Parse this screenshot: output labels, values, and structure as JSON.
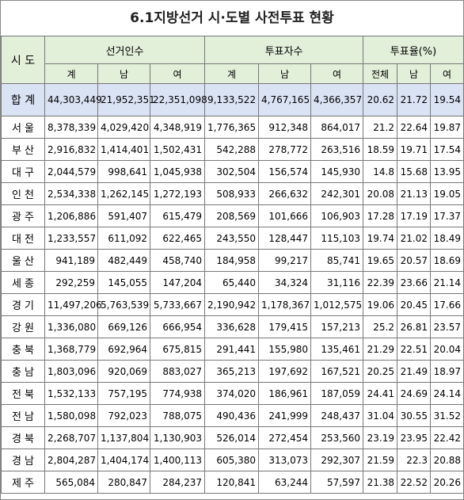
{
  "title": "6.1지방선거 시·도별 사전투표 현황",
  "header": {
    "region": "시 도",
    "groups": [
      "선거인수",
      "투표자수",
      "투표율(%)"
    ],
    "subheaders": [
      "계",
      "남",
      "여",
      "계",
      "남",
      "여",
      "전체",
      "남",
      "여"
    ]
  },
  "total": [
    "합 계",
    "44,303,449",
    "21,952,351",
    "22,351,098",
    "9,133,522",
    "4,767,165",
    "4,366,357",
    "20.62",
    "21.72",
    "19.54"
  ],
  "rows": [
    [
      "서 울",
      "8,378,339",
      "4,029,420",
      "4,348,919",
      "1,776,365",
      "912,348",
      "864,017",
      "21.2",
      "22.64",
      "19.87"
    ],
    [
      "부 산",
      "2,916,832",
      "1,414,401",
      "1,502,431",
      "542,288",
      "278,772",
      "263,516",
      "18.59",
      "19.71",
      "17.54"
    ],
    [
      "대 구",
      "2,044,579",
      "998,641",
      "1,045,938",
      "302,504",
      "156,574",
      "145,930",
      "14.8",
      "15.68",
      "13.95"
    ],
    [
      "인 천",
      "2,534,338",
      "1,262,145",
      "1,272,193",
      "508,933",
      "266,632",
      "242,301",
      "20.08",
      "21.13",
      "19.05"
    ],
    [
      "광 주",
      "1,206,886",
      "591,407",
      "615,479",
      "208,569",
      "101,666",
      "106,903",
      "17.28",
      "17.19",
      "17.37"
    ],
    [
      "대 전",
      "1,233,557",
      "611,092",
      "622,465",
      "243,550",
      "128,447",
      "115,103",
      "19.74",
      "21.02",
      "18.49"
    ],
    [
      "울 산",
      "941,189",
      "482,449",
      "458,740",
      "184,958",
      "99,217",
      "85,741",
      "19.65",
      "20.57",
      "18.69"
    ],
    [
      "세 종",
      "292,259",
      "145,055",
      "147,204",
      "65,440",
      "34,324",
      "31,116",
      "22.39",
      "23.66",
      "21.14"
    ],
    [
      "경 기",
      "11,497,206",
      "5,763,539",
      "5,733,667",
      "2,190,942",
      "1,178,367",
      "1,012,575",
      "19.06",
      "20.45",
      "17.66"
    ],
    [
      "강 원",
      "1,336,080",
      "669,126",
      "666,954",
      "336,628",
      "179,415",
      "157,213",
      "25.2",
      "26.81",
      "23.57"
    ],
    [
      "충 북",
      "1,368,779",
      "692,964",
      "675,815",
      "291,441",
      "155,980",
      "135,461",
      "21.29",
      "22.51",
      "20.04"
    ],
    [
      "충 남",
      "1,803,096",
      "920,069",
      "883,027",
      "365,213",
      "197,692",
      "167,521",
      "20.25",
      "21.49",
      "18.97"
    ],
    [
      "전 북",
      "1,532,133",
      "757,195",
      "774,938",
      "374,020",
      "186,961",
      "187,059",
      "24.41",
      "24.69",
      "24.14"
    ],
    [
      "전 남",
      "1,580,098",
      "792,023",
      "788,075",
      "490,436",
      "241,999",
      "248,437",
      "31.04",
      "30.55",
      "31.52"
    ],
    [
      "경 북",
      "2,268,707",
      "1,137,804",
      "1,130,903",
      "526,014",
      "272,454",
      "253,560",
      "23.19",
      "23.95",
      "22.42"
    ],
    [
      "경 남",
      "2,804,287",
      "1,404,174",
      "1,400,113",
      "605,380",
      "313,073",
      "292,307",
      "21.59",
      "22.3",
      "20.88"
    ],
    [
      "제 주",
      "565,084",
      "280,847",
      "284,237",
      "120,841",
      "63,244",
      "57,597",
      "21.38",
      "22.52",
      "20.26"
    ]
  ]
}
